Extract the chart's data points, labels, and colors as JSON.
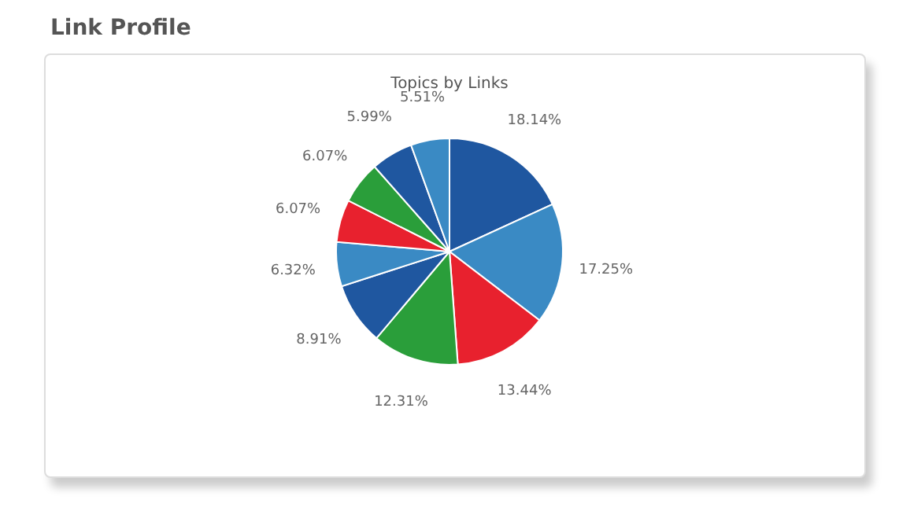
{
  "chart_data": {
    "type": "pie",
    "title": "Link Profile",
    "subtitle": "Topics by Links",
    "categories": [
      null,
      null,
      null,
      null,
      null,
      null,
      null,
      null,
      null,
      null
    ],
    "values": [
      18.14,
      17.25,
      13.44,
      12.31,
      8.91,
      6.32,
      6.07,
      6.07,
      5.99,
      5.51
    ],
    "value_labels": [
      "18.14%",
      "17.25%",
      "13.44%",
      "12.31%",
      "8.91%",
      "6.32%",
      "6.07%",
      "6.07%",
      "5.99%",
      "5.51%"
    ],
    "colors": [
      "#1f57a0",
      "#3a8ac4",
      "#e8212e",
      "#2a9e3a",
      "#1f57a0",
      "#3a8ac4",
      "#e8212e",
      "#2a9e3a",
      "#1f57a0",
      "#3a8ac4"
    ]
  }
}
